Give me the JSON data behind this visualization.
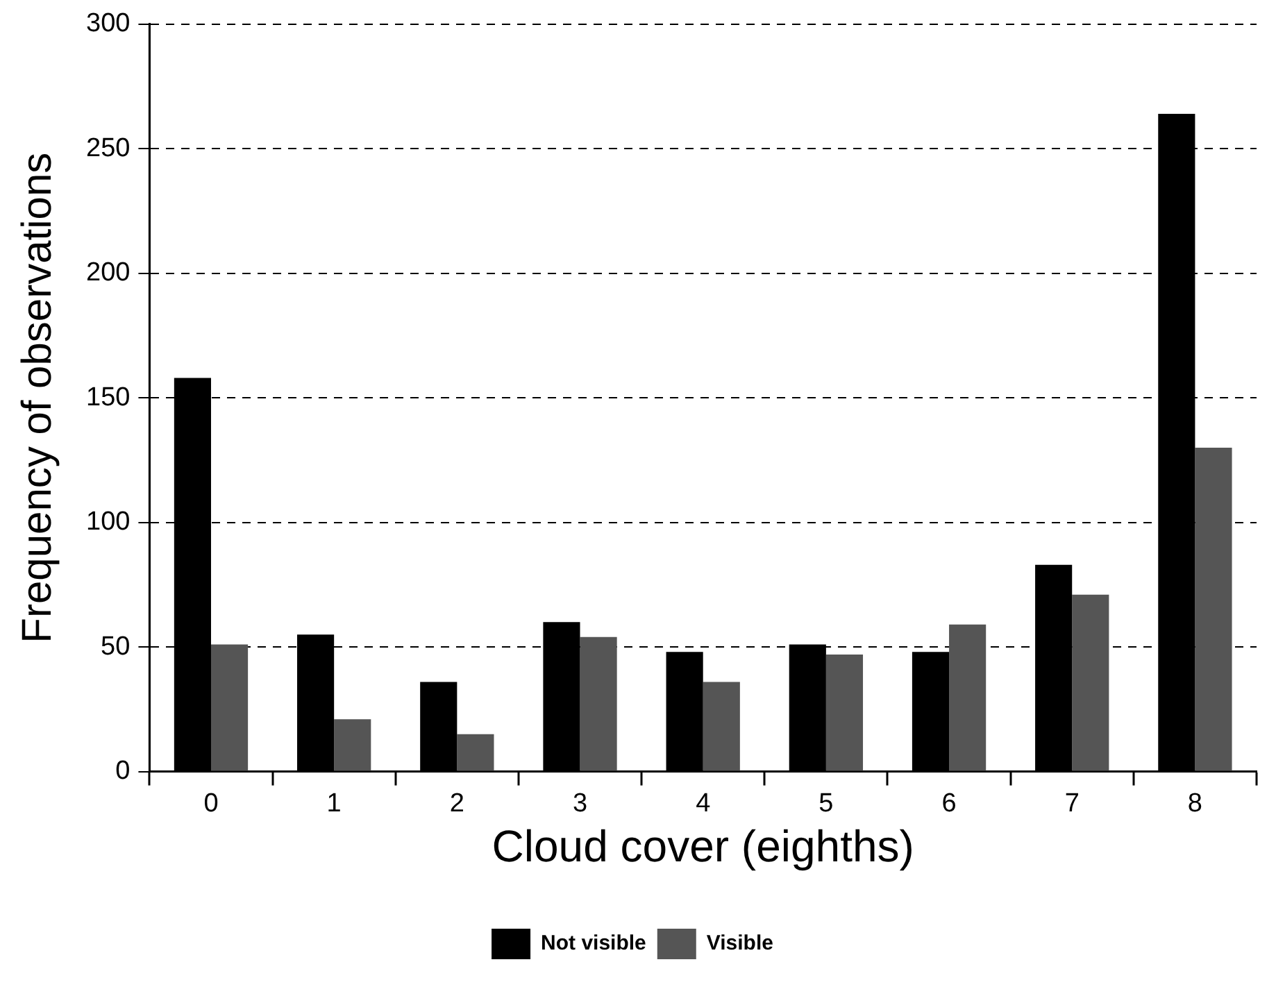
{
  "chart_data": {
    "type": "bar",
    "xlabel": "Cloud cover (eighths)",
    "ylabel": "Frequency of observations",
    "categories": [
      "0",
      "1",
      "2",
      "3",
      "4",
      "5",
      "6",
      "7",
      "8"
    ],
    "series": [
      {
        "name": "Not visible",
        "color": "#000000",
        "values": [
          158,
          55,
          36,
          60,
          48,
          51,
          48,
          83,
          264
        ]
      },
      {
        "name": "Visible",
        "color": "#555555",
        "values": [
          51,
          21,
          15,
          54,
          36,
          47,
          59,
          71,
          130
        ]
      }
    ],
    "ylim": [
      0,
      300
    ],
    "yticks": [
      0,
      50,
      100,
      150,
      200,
      250,
      300
    ],
    "grid": "y",
    "legend": "bottom"
  }
}
